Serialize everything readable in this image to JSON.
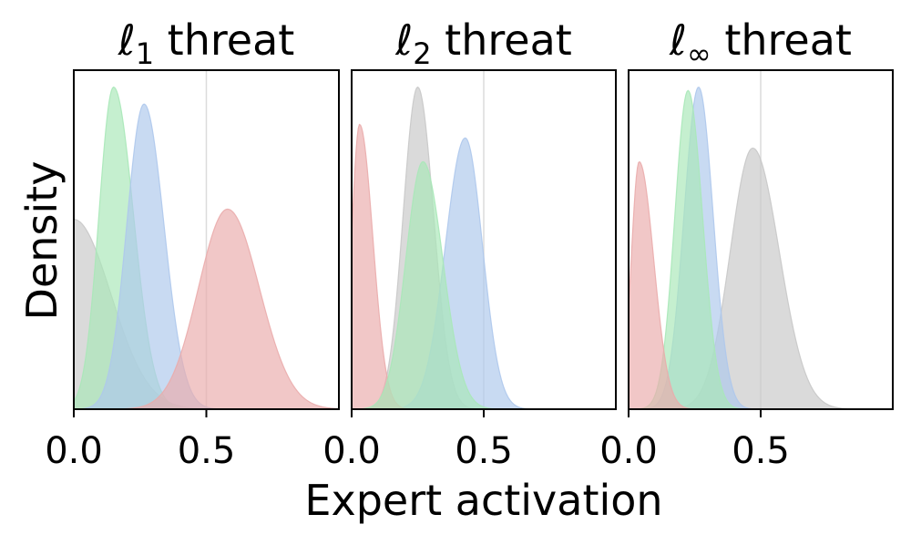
{
  "figure": {
    "ylabel": "Density",
    "xlabel": "Expert activation"
  },
  "chart_data": [
    {
      "type": "area",
      "title": "ℓ₁ threat",
      "title_main": "ℓ",
      "title_sub": "1",
      "title_rest": " threat",
      "xlim": [
        0,
        1
      ],
      "ylim": [
        0,
        1
      ],
      "xticks": [
        "0.0",
        "0.5"
      ],
      "vline": 0.5,
      "series": [
        {
          "color": "#c8c8c8",
          "peak_x": 0.0,
          "peak_y": 0.56,
          "sigma_left": 0.14,
          "sigma_right": 0.14
        },
        {
          "color": "#a9e8b8",
          "peak_x": 0.15,
          "peak_y": 0.95,
          "sigma_left": 0.055,
          "sigma_right": 0.075
        },
        {
          "color": "#aec8ec",
          "peak_x": 0.265,
          "peak_y": 0.9,
          "sigma_left": 0.065,
          "sigma_right": 0.075
        },
        {
          "color": "#eaacac",
          "peak_x": 0.58,
          "peak_y": 0.59,
          "sigma_left": 0.11,
          "sigma_right": 0.12
        }
      ]
    },
    {
      "type": "area",
      "title": "ℓ₂ threat",
      "title_main": "ℓ",
      "title_sub": "2",
      "title_rest": " threat",
      "xlim": [
        0,
        1
      ],
      "ylim": [
        0,
        1
      ],
      "xticks": [
        "0.0",
        "0.5"
      ],
      "vline": 0.5,
      "series": [
        {
          "color": "#c8c8c8",
          "peak_x": 0.25,
          "peak_y": 0.95,
          "sigma_left": 0.055,
          "sigma_right": 0.06
        },
        {
          "color": "#aec8ec",
          "peak_x": 0.43,
          "peak_y": 0.8,
          "sigma_left": 0.075,
          "sigma_right": 0.065
        },
        {
          "color": "#eaacac",
          "peak_x": 0.03,
          "peak_y": 0.84,
          "sigma_left": 0.03,
          "sigma_right": 0.05
        },
        {
          "color": "#a9e8b8",
          "peak_x": 0.27,
          "peak_y": 0.73,
          "sigma_left": 0.065,
          "sigma_right": 0.075
        }
      ]
    },
    {
      "type": "area",
      "title": "ℓ∞ threat",
      "title_main": "ℓ",
      "title_sub": "∞",
      "title_rest": " threat",
      "xlim": [
        0,
        1
      ],
      "ylim": [
        0,
        1
      ],
      "xticks": [
        "0.0",
        "0.5"
      ],
      "vline": 0.5,
      "series": [
        {
          "color": "#c8c8c8",
          "peak_x": 0.47,
          "peak_y": 0.77,
          "sigma_left": 0.085,
          "sigma_right": 0.1
        },
        {
          "color": "#aec8ec",
          "peak_x": 0.265,
          "peak_y": 0.95,
          "sigma_left": 0.055,
          "sigma_right": 0.055
        },
        {
          "color": "#a9e8b8",
          "peak_x": 0.225,
          "peak_y": 0.94,
          "sigma_left": 0.05,
          "sigma_right": 0.055
        },
        {
          "color": "#eaacac",
          "peak_x": 0.04,
          "peak_y": 0.73,
          "sigma_left": 0.03,
          "sigma_right": 0.055
        }
      ]
    }
  ]
}
